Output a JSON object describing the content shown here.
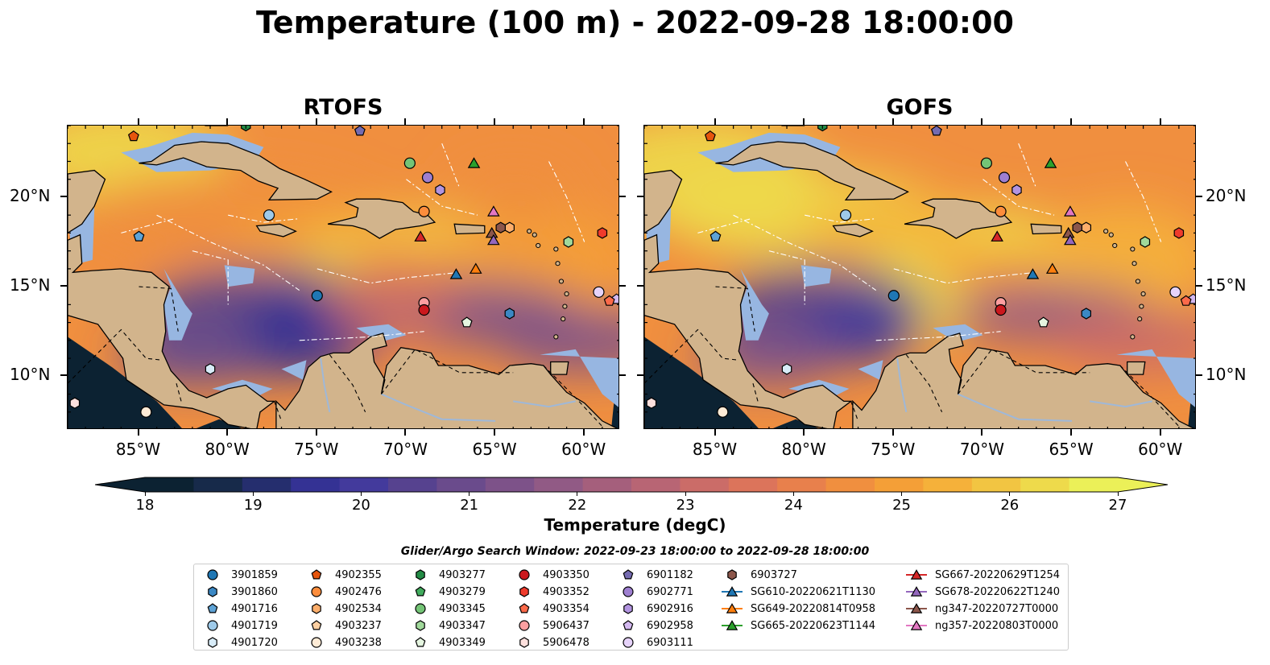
{
  "title": "Temperature (100 m) - 2022-09-28 18:00:00",
  "panels": [
    {
      "title": "RTOFS",
      "variant": "rtofs"
    },
    {
      "title": "GOFS",
      "variant": "gofs"
    }
  ],
  "axes": {
    "lon_ticks": [
      "85°W",
      "80°W",
      "75°W",
      "70°W",
      "65°W",
      "60°W"
    ],
    "lat_ticks": [
      "20°N",
      "15°N",
      "10°N"
    ],
    "lon_values": [
      -85,
      -80,
      -75,
      -70,
      -65,
      -60
    ],
    "lat_values": [
      20,
      15,
      10
    ],
    "lon_range": [
      -89,
      -58
    ],
    "lat_range": [
      7,
      24
    ]
  },
  "colorbar": {
    "label": "Temperature (degC)",
    "ticks": [
      "18",
      "19",
      "20",
      "21",
      "22",
      "23",
      "24",
      "25",
      "26",
      "27"
    ],
    "range": [
      18,
      27
    ],
    "extend": "both",
    "colors": [
      "#0c2232",
      "#172a4a",
      "#252e6e",
      "#343294",
      "#433a9c",
      "#56428f",
      "#6a4b8c",
      "#7d5289",
      "#915a85",
      "#a55f7c",
      "#b86574",
      "#cb6c68",
      "#dc745b",
      "#e8804c",
      "#f08f3f",
      "#f49f37",
      "#f5b13a",
      "#f2c542",
      "#eeda4b",
      "#ebf058"
    ]
  },
  "search_window": "Glider/Argo Search Window: 2022-09-23 18:00:00 to 2022-09-28 18:00:00",
  "colors": {
    "land": "#d2b48c",
    "shelf_water": "#97b6e1",
    "deep_ocean": "#0c2232",
    "river": "#9fb8d8"
  },
  "legend": [
    {
      "label": "3901859",
      "marker": "circle",
      "color": "#1f77b4"
    },
    {
      "label": "3901860",
      "marker": "hexagon",
      "color": "#3b88c4"
    },
    {
      "label": "4901716",
      "marker": "pentagon",
      "color": "#5ea3d6"
    },
    {
      "label": "4901719",
      "marker": "circle",
      "color": "#9ecae9"
    },
    {
      "label": "4901720",
      "marker": "hexagon",
      "color": "#d8ecf8"
    },
    {
      "label": "4902355",
      "marker": "pentagon",
      "color": "#e6550d"
    },
    {
      "label": "4902476",
      "marker": "circle",
      "color": "#fd8d3c"
    },
    {
      "label": "4902534",
      "marker": "hexagon",
      "color": "#fdae6b"
    },
    {
      "label": "4903237",
      "marker": "pentagon",
      "color": "#fdd0a2"
    },
    {
      "label": "4903238",
      "marker": "circle",
      "color": "#feebd6"
    },
    {
      "label": "4903277",
      "marker": "hexagon",
      "color": "#238b45"
    },
    {
      "label": "4903279",
      "marker": "pentagon",
      "color": "#41ab5d"
    },
    {
      "label": "4903345",
      "marker": "circle",
      "color": "#74c476"
    },
    {
      "label": "4903347",
      "marker": "hexagon",
      "color": "#a1d99b"
    },
    {
      "label": "4903349",
      "marker": "pentagon",
      "color": "#e5f5e0"
    },
    {
      "label": "4903350",
      "marker": "circle",
      "color": "#cb181d"
    },
    {
      "label": "4903352",
      "marker": "hexagon",
      "color": "#ef3b2c"
    },
    {
      "label": "4903354",
      "marker": "pentagon",
      "color": "#fb6a4a"
    },
    {
      "label": "5906437",
      "marker": "circle",
      "color": "#fc9fa0"
    },
    {
      "label": "5906478",
      "marker": "hexagon",
      "color": "#fde0dd"
    },
    {
      "label": "6901182",
      "marker": "pentagon",
      "color": "#756bb1"
    },
    {
      "label": "6902771",
      "marker": "circle",
      "color": "#9e7fd0"
    },
    {
      "label": "6902916",
      "marker": "hexagon",
      "color": "#b294e0"
    },
    {
      "label": "6902958",
      "marker": "pentagon",
      "color": "#d4b9f0"
    },
    {
      "label": "6903111",
      "marker": "circle",
      "color": "#e6d3fa"
    },
    {
      "label": "6903727",
      "marker": "hexagon",
      "color": "#8c564b"
    },
    {
      "label": "SG610-20220621T1130",
      "marker": "triangle",
      "color": "#1f77b4"
    },
    {
      "label": "SG649-20220814T0958",
      "marker": "triangle",
      "color": "#ff7f0e"
    },
    {
      "label": "SG665-20220623T1144",
      "marker": "triangle",
      "color": "#2ca02c"
    },
    {
      "label": "SG667-20220629T1254",
      "marker": "triangle",
      "color": "#d62728"
    },
    {
      "label": "SG678-20220622T1240",
      "marker": "triangle",
      "color": "#9467bd"
    },
    {
      "label": "ng347-20220727T0000",
      "marker": "triangle",
      "color": "#8c564b"
    },
    {
      "label": "ng357-20220803T0000",
      "marker": "triangle",
      "color": "#e377c2"
    }
  ],
  "map_markers": [
    {
      "id": "4902355",
      "lon": -85.3,
      "lat": 23.4
    },
    {
      "id": "6901182",
      "lon": -72.6,
      "lat": 23.7
    },
    {
      "id": "4903345",
      "lon": -69.8,
      "lat": 21.9
    },
    {
      "id": "SG665-20220623T1144",
      "lon": -66.2,
      "lat": 21.9
    },
    {
      "id": "6902771",
      "lon": -68.8,
      "lat": 21.1
    },
    {
      "id": "6902916",
      "lon": -68.1,
      "lat": 20.4
    },
    {
      "id": "4901719",
      "lon": -77.7,
      "lat": 19.0
    },
    {
      "id": "4902476",
      "lon": -69.0,
      "lat": 19.2
    },
    {
      "id": "ng357-20220803T0000",
      "lon": -65.1,
      "lat": 19.2
    },
    {
      "id": "4902534",
      "lon": -64.2,
      "lat": 18.3
    },
    {
      "id": "6903727",
      "lon": -64.7,
      "lat": 18.3
    },
    {
      "id": "ng347-20220727T0000",
      "lon": -65.2,
      "lat": 18.0
    },
    {
      "id": "4901716",
      "lon": -85.0,
      "lat": 17.8
    },
    {
      "id": "SG667-20220629T1254",
      "lon": -69.2,
      "lat": 17.8
    },
    {
      "id": "SG678-20220622T1240",
      "lon": -65.1,
      "lat": 17.6
    },
    {
      "id": "4903352",
      "lon": -59.0,
      "lat": 18.0
    },
    {
      "id": "4903347",
      "lon": -60.9,
      "lat": 17.5
    },
    {
      "id": "SG649-20220814T0958",
      "lon": -66.1,
      "lat": 16.0
    },
    {
      "id": "SG610-20220621T1130",
      "lon": -67.2,
      "lat": 15.7
    },
    {
      "id": "3901859",
      "lon": -75.0,
      "lat": 14.5
    },
    {
      "id": "6903111",
      "lon": -59.2,
      "lat": 14.7
    },
    {
      "id": "5906437",
      "lon": -69.0,
      "lat": 14.1
    },
    {
      "id": "4903350",
      "lon": -69.0,
      "lat": 13.7
    },
    {
      "id": "3901860",
      "lon": -64.2,
      "lat": 13.5
    },
    {
      "id": "4903349",
      "lon": -66.6,
      "lat": 13.0
    },
    {
      "id": "4901720",
      "lon": -81.0,
      "lat": 10.4
    },
    {
      "id": "5906478",
      "lon": -88.6,
      "lat": 8.5
    },
    {
      "id": "4903238",
      "lon": -84.6,
      "lat": 8.0
    },
    {
      "id": "6902958",
      "lon": -58.2,
      "lat": 14.3
    },
    {
      "id": "4903277",
      "lon": -79.0,
      "lat": 24.0
    },
    {
      "id": "4903354",
      "lon": -58.6,
      "lat": 14.2
    }
  ]
}
